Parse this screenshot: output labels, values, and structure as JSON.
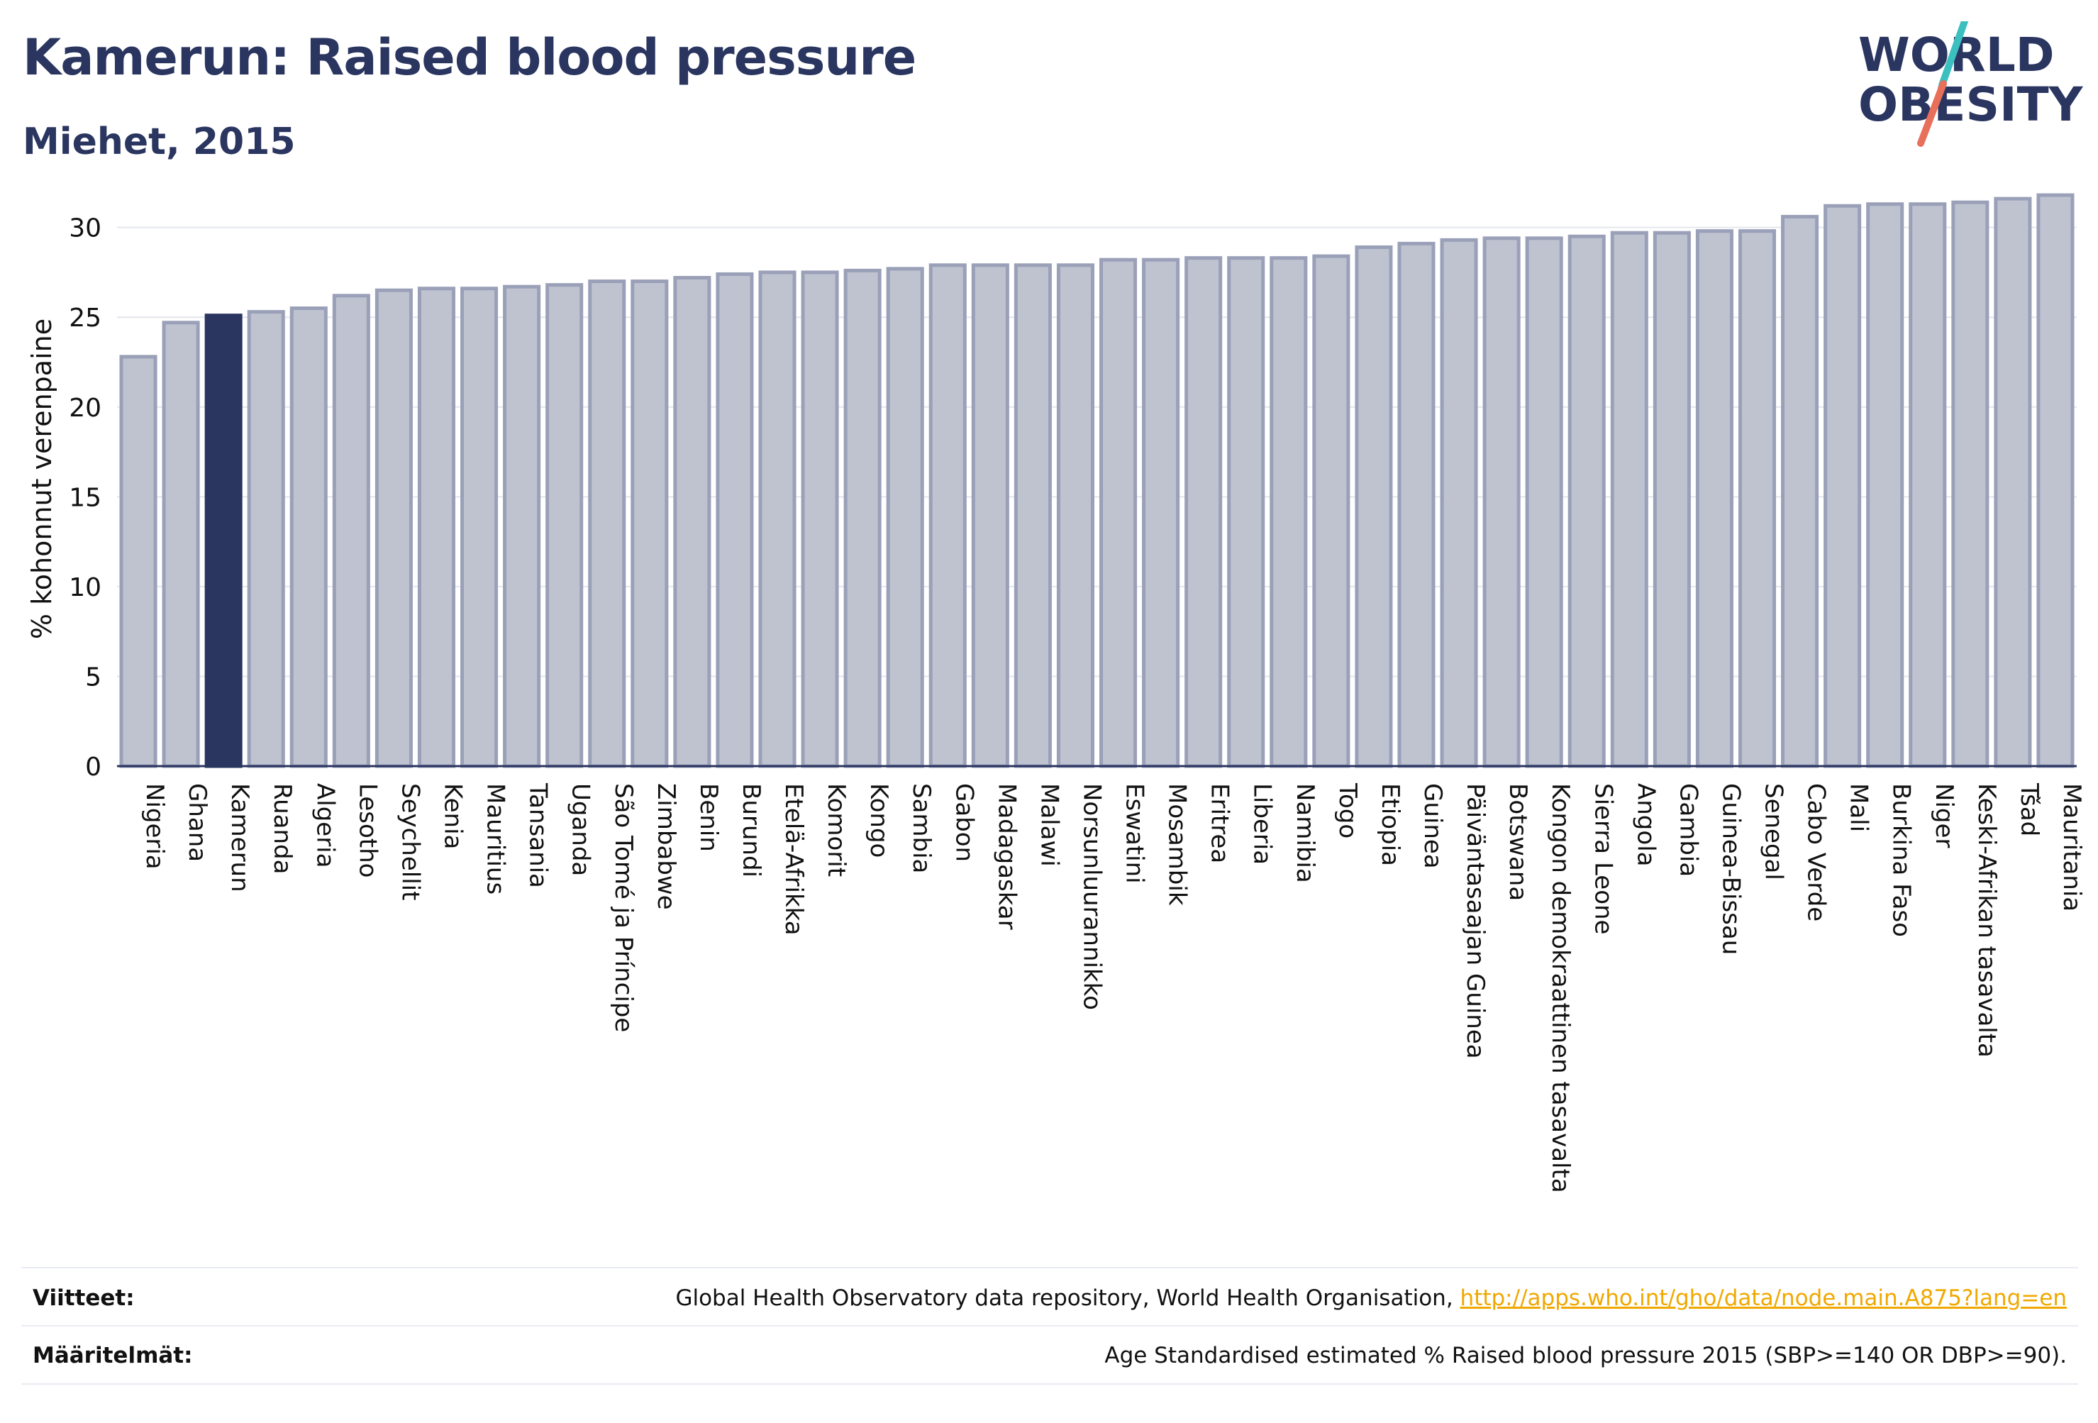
{
  "header": {
    "title": "Kamerun: Raised blood pressure",
    "subtitle": "Miehet, 2015"
  },
  "logo": {
    "line1": "WORLD",
    "line2": "OBESITY",
    "accent_teal": "#3bbfbf",
    "accent_red": "#e8705a"
  },
  "colors": {
    "bar_fill": "#bfc3d0",
    "bar_stroke": "#9aa0b8",
    "highlight_fill": "#2a3560",
    "text": "#2a3560",
    "link": "#f0a800"
  },
  "chart_data": {
    "type": "bar",
    "ylabel": "% kohonnut verenpaine",
    "ylim": [
      0,
      32
    ],
    "yticks": [
      0,
      5,
      10,
      15,
      20,
      25,
      30
    ],
    "grid": true,
    "highlight": "Kamerun",
    "categories": [
      "Nigeria",
      "Ghana",
      "Kamerun",
      "Ruanda",
      "Algeria",
      "Lesotho",
      "Seychellit",
      "Kenia",
      "Mauritius",
      "Tansania",
      "Uganda",
      "São Tomé ja Príncipe",
      "Zimbabwe",
      "Benin",
      "Burundi",
      "Etelä-Afrikka",
      "Komorit",
      "Kongo",
      "Sambia",
      "Gabon",
      "Madagaskar",
      "Malawi",
      "Norsunluurannikko",
      "Eswatini",
      "Mosambik",
      "Eritrea",
      "Liberia",
      "Namibia",
      "Togo",
      "Etiopia",
      "Guinea",
      "Päiväntasaajan Guinea",
      "Botswana",
      "Kongon demokraattinen tasavalta",
      "Sierra Leone",
      "Angola",
      "Gambia",
      "Guinea-Bissau",
      "Senegal",
      "Cabo Verde",
      "Mali",
      "Burkina Faso",
      "Niger",
      "Keski-Afrikan tasavalta",
      "Tšad",
      "Mauritania"
    ],
    "values": [
      22.8,
      24.7,
      25.1,
      25.3,
      25.5,
      26.2,
      26.5,
      26.6,
      26.6,
      26.7,
      26.8,
      27.0,
      27.0,
      27.2,
      27.4,
      27.5,
      27.5,
      27.6,
      27.7,
      27.9,
      27.9,
      27.9,
      27.9,
      28.2,
      28.2,
      28.3,
      28.3,
      28.3,
      28.4,
      28.9,
      29.1,
      29.3,
      29.4,
      29.4,
      29.5,
      29.7,
      29.7,
      29.8,
      29.8,
      30.6,
      31.2,
      31.3,
      31.3,
      31.4,
      31.6,
      31.8
    ]
  },
  "footer": {
    "references_label": "Viitteet:",
    "references_text": "Global Health Observatory data repository, World Health Organisation, ",
    "references_link": "http://apps.who.int/gho/data/node.main.A875?lang=en",
    "definitions_label": "Määritelmät:",
    "definitions_text": "Age Standardised estimated % Raised blood pressure 2015 (SBP>=140 OR DBP>=90)."
  }
}
